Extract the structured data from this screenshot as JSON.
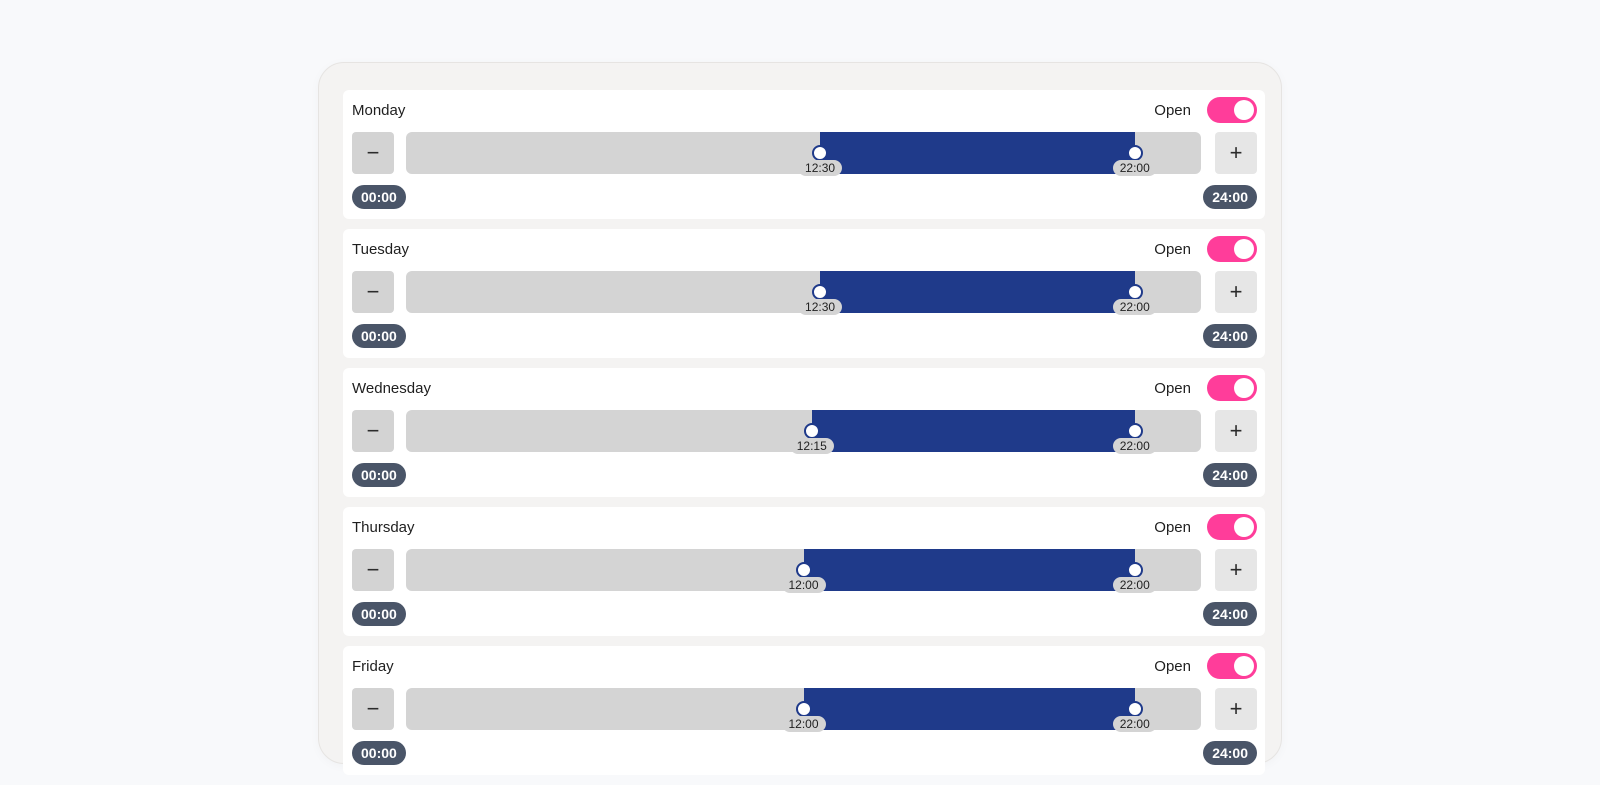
{
  "days": [
    {
      "name": "Monday",
      "status": "Open",
      "enabled": true,
      "start": "12:30",
      "end": "22:00",
      "start_fraction": 0.5208,
      "end_fraction": 0.9167,
      "range_min": "00:00",
      "range_max": "24:00"
    },
    {
      "name": "Tuesday",
      "status": "Open",
      "enabled": true,
      "start": "12:30",
      "end": "22:00",
      "start_fraction": 0.5208,
      "end_fraction": 0.9167,
      "range_min": "00:00",
      "range_max": "24:00"
    },
    {
      "name": "Wednesday",
      "status": "Open",
      "enabled": true,
      "start": "12:15",
      "end": "22:00",
      "start_fraction": 0.5104,
      "end_fraction": 0.9167,
      "range_min": "00:00",
      "range_max": "24:00"
    },
    {
      "name": "Thursday",
      "status": "Open",
      "enabled": true,
      "start": "12:00",
      "end": "22:00",
      "start_fraction": 0.5,
      "end_fraction": 0.9167,
      "range_min": "00:00",
      "range_max": "24:00"
    },
    {
      "name": "Friday",
      "status": "Open",
      "enabled": true,
      "start": "12:00",
      "end": "22:00",
      "start_fraction": 0.5,
      "end_fraction": 0.9167,
      "range_min": "00:00",
      "range_max": "24:00"
    }
  ],
  "controls": {
    "minus_label": "−",
    "plus_label": "+"
  },
  "colors": {
    "toggle_on": "#ff3d9a",
    "range_fill": "#1f3a8a",
    "track": "#d4d4d4",
    "bound_pill": "#4a5568"
  }
}
